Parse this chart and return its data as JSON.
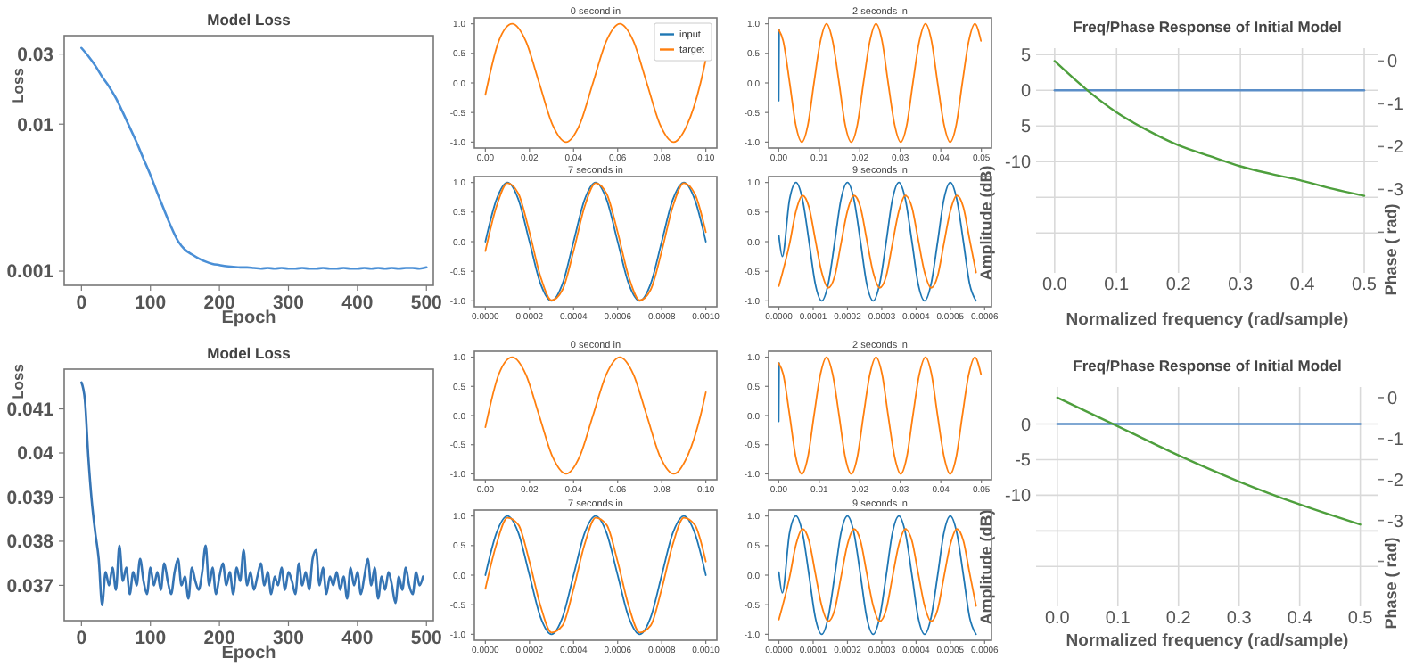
{
  "chart_data": [
    {
      "type": "line",
      "title": "Model Loss",
      "xlabel": "Epoch",
      "ylabel": "Loss",
      "log": "y",
      "xlim": [
        -25,
        510
      ],
      "ylim": [
        0.0008,
        0.04
      ],
      "xticks": [
        0,
        100,
        200,
        300,
        400,
        500
      ],
      "yticks": [
        0.001,
        0.01,
        0.03
      ],
      "series": [
        {
          "color": "#4a8fd6",
          "x": [
            0,
            10,
            20,
            30,
            40,
            50,
            60,
            70,
            80,
            90,
            100,
            110,
            120,
            130,
            140,
            150,
            160,
            170,
            180,
            190,
            200,
            210,
            220,
            230,
            240,
            250,
            260,
            270,
            280,
            290,
            300,
            310,
            320,
            330,
            340,
            350,
            360,
            370,
            380,
            390,
            400,
            410,
            420,
            430,
            440,
            450,
            460,
            470,
            480,
            490,
            500
          ],
          "values": [
            0.033,
            0.029,
            0.025,
            0.021,
            0.018,
            0.015,
            0.012,
            0.0095,
            0.0075,
            0.0058,
            0.0045,
            0.0034,
            0.0026,
            0.002,
            0.0016,
            0.0014,
            0.0013,
            0.00122,
            0.00116,
            0.00112,
            0.0011,
            0.00108,
            0.00107,
            0.00106,
            0.00106,
            0.00105,
            0.00104,
            0.00105,
            0.00104,
            0.00105,
            0.00104,
            0.00104,
            0.00105,
            0.00104,
            0.00104,
            0.00105,
            0.00104,
            0.00104,
            0.00105,
            0.00104,
            0.00104,
            0.00105,
            0.00104,
            0.00105,
            0.00104,
            0.00105,
            0.00104,
            0.00105,
            0.00105,
            0.00104,
            0.00106
          ]
        }
      ]
    },
    {
      "type": "line",
      "title": "0 second in",
      "legend": "top right",
      "xlim": [
        -0.005,
        0.105
      ],
      "ylim": [
        -1.1,
        1.1
      ],
      "xticks": [
        {
          "value": 0,
          "label": "0.00"
        },
        {
          "value": 0.02,
          "label": "0.02"
        },
        {
          "value": 0.04,
          "label": "0.04"
        },
        {
          "value": 0.06,
          "label": "0.06"
        },
        {
          "value": 0.08,
          "label": "0.08"
        },
        {
          "value": 0.1,
          "label": "0.10"
        }
      ],
      "yticks": [
        {
          "value": -1,
          "label": "-1.0"
        },
        {
          "value": -0.5,
          "label": "-0.5"
        },
        {
          "value": 0,
          "label": "0.0"
        },
        {
          "value": 0.5,
          "label": "0.5"
        },
        {
          "value": 1,
          "label": "1.0"
        }
      ],
      "series": [
        {
          "name": "input",
          "color": "#1f77b4"
        },
        {
          "name": "target",
          "color": "#ff7f0e",
          "x": [
            0,
            0.0061,
            0.0122,
            0.0183,
            0.0244,
            0.0305,
            0.0366,
            0.0427,
            0.0488,
            0.0549,
            0.061,
            0.0671,
            0.0732,
            0.0793,
            0.0854,
            0.0915,
            0.0976,
            0.1
          ],
          "values": [
            -0.2,
            0.71,
            1,
            0.71,
            0,
            -0.71,
            -1,
            -0.71,
            0,
            0.71,
            1,
            0.71,
            0,
            -0.71,
            -1,
            -0.71,
            0,
            0.4
          ]
        }
      ]
    },
    {
      "type": "line",
      "title": "2 seconds in",
      "xlim": [
        -0.0025,
        0.0525
      ],
      "ylim": [
        -1.1,
        1.1
      ],
      "xticks": [
        {
          "value": 0,
          "label": "0.00"
        },
        {
          "value": 0.01,
          "label": "0.01"
        },
        {
          "value": 0.02,
          "label": "0.02"
        },
        {
          "value": 0.03,
          "label": "0.03"
        },
        {
          "value": 0.04,
          "label": "0.04"
        },
        {
          "value": 0.05,
          "label": "0.05"
        }
      ],
      "yticks": [
        {
          "value": -1,
          "label": "-1.0"
        },
        {
          "value": -0.5,
          "label": "-0.5"
        },
        {
          "value": 0,
          "label": "0.0"
        },
        {
          "value": 0.5,
          "label": "0.5"
        },
        {
          "value": 1,
          "label": "1.0"
        }
      ],
      "series": [
        {
          "color": "#1f77b4",
          "x": [
            0,
            0.0001
          ],
          "values": [
            -0.3,
            0.9
          ]
        },
        {
          "color": "#ff7f0e",
          "x": [
            0,
            0.0011,
            0.0027,
            0.0042,
            0.0057,
            0.0072,
            0.0087,
            0.0103,
            0.0118,
            0.0133,
            0.0149,
            0.0164,
            0.0179,
            0.0194,
            0.0209,
            0.0225,
            0.024,
            0.0255,
            0.027,
            0.0286,
            0.0301,
            0.0316,
            0.0331,
            0.0347,
            0.0362,
            0.0377,
            0.0392,
            0.0408,
            0.0423,
            0.0438,
            0.0453,
            0.0469,
            0.0484,
            0.0499
          ],
          "values": [
            0.9,
            0.71,
            0,
            -0.71,
            -1,
            -0.71,
            0,
            0.71,
            1,
            0.71,
            0,
            -0.71,
            -1,
            -0.71,
            0,
            0.71,
            1,
            0.71,
            0,
            -0.71,
            -1,
            -0.71,
            0,
            0.71,
            1,
            0.71,
            0,
            -0.71,
            -1,
            -0.71,
            0,
            0.71,
            1,
            0.71
          ]
        }
      ]
    },
    {
      "type": "line",
      "title": "Freq/Phase Response of Initial Model",
      "xlabel": "Normalized frequency (rad/sample)",
      "ylabel": "Amplitude (dB)",
      "y2label": "Phase ( rad)",
      "grid": true,
      "xlim": [
        -0.03,
        0.523
      ],
      "ylim": [
        -25.6,
        5.9
      ],
      "y2lim": [
        -4.95,
        0.3
      ],
      "xticks": [
        {
          "value": 0,
          "label": "0.0"
        },
        {
          "value": 0.1,
          "label": "0.1"
        },
        {
          "value": 0.2,
          "label": "0.2"
        },
        {
          "value": 0.3,
          "label": "0.3"
        },
        {
          "value": 0.4,
          "label": "0.4"
        },
        {
          "value": 0.5,
          "label": "0.5"
        }
      ],
      "yticks": [
        5,
        0,
        {
          "value": -5,
          "label": "5"
        },
        -10,
        {
          "value": -15,
          "label": null
        },
        {
          "value": -20,
          "label": null
        }
      ],
      "y2ticks": [
        0,
        -1,
        -2,
        -3,
        {
          "value": -4,
          "label": null
        }
      ],
      "series": [
        {
          "color": "#5a8ec8",
          "x": [
            0,
            0.5
          ],
          "values": [
            0,
            0
          ]
        },
        {
          "color": "#4e9f3d",
          "axis": "y2",
          "x": [
            0,
            0.05,
            0.1,
            0.15,
            0.2,
            0.25,
            0.3,
            0.35,
            0.4,
            0.45,
            0.5
          ],
          "values": [
            0,
            -0.65,
            -1.2,
            -1.62,
            -1.97,
            -2.22,
            -2.46,
            -2.64,
            -2.8,
            -2.99,
            -3.15
          ]
        }
      ]
    },
    {
      "type": "line",
      "title": "7 seconds in",
      "xlim": [
        -5e-05,
        0.00105
      ],
      "ylim": [
        -1.1,
        1.1
      ],
      "xticks": [
        {
          "value": 0,
          "label": "0.0000"
        },
        {
          "value": 0.0002,
          "label": "0.0002"
        },
        {
          "value": 0.0004,
          "label": "0.0004"
        },
        {
          "value": 0.0006,
          "label": "0.0006"
        },
        {
          "value": 0.0008,
          "label": "0.0008"
        },
        {
          "value": 0.001,
          "label": "0.0010"
        }
      ],
      "yticks": [
        {
          "value": -1,
          "label": "-1.0"
        },
        {
          "value": -0.5,
          "label": "-0.5"
        },
        {
          "value": 0,
          "label": "0.0"
        },
        {
          "value": 0.5,
          "label": "0.5"
        },
        {
          "value": 1,
          "label": "1.0"
        }
      ],
      "series": [
        {
          "color": "#1f77b4",
          "x": [
            0,
            5e-05,
            0.0001,
            0.00015,
            0.0002,
            0.00025,
            0.0003,
            0.00035,
            0.0004,
            0.00045,
            0.0005,
            0.00055,
            0.0006,
            0.00065,
            0.0007,
            0.00075,
            0.0008,
            0.00085,
            0.0009,
            0.00095,
            0.001
          ],
          "values": [
            0,
            0.71,
            1,
            0.71,
            0,
            -0.71,
            -1,
            -0.71,
            0,
            0.71,
            1,
            0.71,
            0,
            -0.71,
            -1,
            -0.71,
            0,
            0.71,
            1,
            0.71,
            0
          ]
        },
        {
          "color": "#ff7f0e",
          "x": [
            0,
            5e-05,
            0.0001,
            0.00015,
            0.0002,
            0.00025,
            0.0003,
            0.00035,
            0.0004,
            0.00045,
            0.0005,
            0.00055,
            0.0006,
            0.00065,
            0.0007,
            0.00075,
            0.0008,
            0.00085,
            0.0009,
            0.00095,
            0.001
          ],
          "values": [
            -0.16,
            0.59,
            0.99,
            0.81,
            0.16,
            -0.59,
            -0.99,
            -0.81,
            -0.16,
            0.59,
            0.99,
            0.81,
            0.16,
            -0.59,
            -0.99,
            -0.81,
            -0.16,
            0.59,
            0.99,
            0.81,
            0.16
          ]
        }
      ]
    },
    {
      "type": "line",
      "title": "9 seconds in",
      "xlim": [
        -3e-05,
        0.00062
      ],
      "ylim": [
        -1.1,
        1.1
      ],
      "xticks": [
        {
          "value": 0,
          "label": "0.0000"
        },
        {
          "value": 0.0001,
          "label": "0.0001"
        },
        {
          "value": 0.0002,
          "label": "0.0002"
        },
        {
          "value": 0.0003,
          "label": "0.0003"
        },
        {
          "value": 0.0004,
          "label": "0.0004"
        },
        {
          "value": 0.0005,
          "label": "0.0005"
        },
        {
          "value": 0.0006,
          "label": "0.0006"
        }
      ],
      "yticks": [
        {
          "value": -1,
          "label": "-1.0"
        },
        {
          "value": -0.5,
          "label": "-0.5"
        },
        {
          "value": 0,
          "label": "0.0"
        },
        {
          "value": 0.5,
          "label": "0.5"
        },
        {
          "value": 1,
          "label": "1.0"
        }
      ],
      "series": [
        {
          "color": "#1f77b4",
          "x": [
            0,
            1e-05,
            3.1e-05,
            5e-05,
            6.9e-05,
            8.8e-05,
            0.000106,
            0.000125,
            0.000144,
            0.000163,
            0.000181,
            0.0002,
            0.000219,
            0.000238,
            0.000256,
            0.000275,
            0.000294,
            0.000313,
            0.000331,
            0.00035,
            0.000369,
            0.000388,
            0.000406,
            0.000425,
            0.000444,
            0.000463,
            0.000481,
            0.0005,
            0.000519,
            0.000538,
            0.000556,
            0.000575
          ],
          "values": [
            0.1,
            -0.25,
            0.71,
            1,
            0.71,
            0,
            -0.71,
            -1,
            -0.71,
            0,
            0.71,
            1,
            0.71,
            0,
            -0.71,
            -1,
            -0.71,
            0,
            0.71,
            1,
            0.71,
            0,
            -0.71,
            -1,
            -0.71,
            0,
            0.71,
            1,
            0.71,
            0,
            -0.71,
            -1
          ]
        },
        {
          "color": "#ff7f0e",
          "x": [
            0,
            3.1e-05,
            5e-05,
            6.9e-05,
            8.8e-05,
            0.000106,
            0.000125,
            0.000144,
            0.000163,
            0.000181,
            0.0002,
            0.000219,
            0.000238,
            0.000256,
            0.000275,
            0.000294,
            0.000313,
            0.000331,
            0.00035,
            0.000369,
            0.000388,
            0.000406,
            0.000425,
            0.000444,
            0.000463,
            0.000481,
            0.0005,
            0.000519,
            0.000538,
            0.000556,
            0.000575
          ],
          "values": [
            -0.75,
            -0.04,
            0.52,
            0.78,
            0.58,
            0.04,
            -0.52,
            -0.78,
            -0.58,
            -0.04,
            0.52,
            0.78,
            0.58,
            0.04,
            -0.52,
            -0.78,
            -0.58,
            -0.04,
            0.52,
            0.78,
            0.58,
            0.04,
            -0.52,
            -0.78,
            -0.58,
            -0.04,
            0.52,
            0.78,
            0.58,
            0.04,
            -0.52
          ]
        }
      ]
    },
    {
      "type": "line",
      "title": "Model Loss",
      "xlabel": "Epoch",
      "ylabel": "Loss",
      "xlim": [
        -25,
        510
      ],
      "ylim": [
        0.0362,
        0.0419
      ],
      "xticks": [
        0,
        100,
        200,
        300,
        400,
        500
      ],
      "yticks": [
        0.037,
        0.038,
        0.039,
        0.04,
        0.041
      ],
      "series": [
        {
          "color": "#3574b4",
          "x": [
            0,
            5,
            10,
            15,
            20,
            25,
            30,
            35,
            40,
            45,
            50,
            55,
            60,
            65,
            70,
            75,
            80,
            85,
            90,
            95,
            100,
            105,
            110,
            115,
            120,
            125,
            130,
            135,
            140,
            145,
            150,
            155,
            160,
            165,
            170,
            175,
            180,
            185,
            190,
            195,
            200,
            205,
            210,
            215,
            220,
            225,
            230,
            235,
            240,
            245,
            250,
            255,
            260,
            265,
            270,
            275,
            280,
            285,
            290,
            295,
            300,
            305,
            310,
            315,
            320,
            325,
            330,
            335,
            340,
            345,
            350,
            355,
            360,
            365,
            370,
            375,
            380,
            385,
            390,
            395,
            400,
            405,
            410,
            415,
            420,
            425,
            430,
            435,
            440,
            445,
            450,
            455,
            460,
            465,
            470,
            475,
            480,
            485,
            490,
            495
          ],
          "values": [
            0.0416,
            0.0412,
            0.0399,
            0.0389,
            0.0382,
            0.0376,
            0.03655,
            0.0373,
            0.037,
            0.0374,
            0.0369,
            0.0379,
            0.0371,
            0.0374,
            0.0368,
            0.0373,
            0.037,
            0.0376,
            0.0371,
            0.0368,
            0.0374,
            0.037,
            0.0373,
            0.0369,
            0.0375,
            0.0371,
            0.0368,
            0.0373,
            0.0376,
            0.037,
            0.0372,
            0.0367,
            0.0374,
            0.0371,
            0.0369,
            0.0373,
            0.0379,
            0.037,
            0.0374,
            0.0368,
            0.0372,
            0.0375,
            0.037,
            0.0373,
            0.0368,
            0.0374,
            0.0371,
            0.0378,
            0.037,
            0.0373,
            0.0369,
            0.0372,
            0.0375,
            0.037,
            0.0373,
            0.0368,
            0.0372,
            0.037,
            0.0374,
            0.0369,
            0.0373,
            0.0371,
            0.0368,
            0.0375,
            0.037,
            0.0373,
            0.0369,
            0.0376,
            0.0378,
            0.037,
            0.0374,
            0.0368,
            0.0372,
            0.037,
            0.0373,
            0.0369,
            0.0372,
            0.0367,
            0.0374,
            0.037,
            0.0373,
            0.0368,
            0.0372,
            0.0376,
            0.037,
            0.0374,
            0.0367,
            0.0372,
            0.0369,
            0.0373,
            0.037,
            0.0366,
            0.0372,
            0.0369,
            0.0374,
            0.037,
            0.0368,
            0.0373,
            0.037,
            0.0372
          ]
        }
      ]
    },
    {
      "type": "line",
      "title": "0 second in",
      "xlim": [
        -0.005,
        0.105
      ],
      "ylim": [
        -1.1,
        1.1
      ],
      "xticks": [
        {
          "value": 0,
          "label": "0.00"
        },
        {
          "value": 0.02,
          "label": "0.02"
        },
        {
          "value": 0.04,
          "label": "0.04"
        },
        {
          "value": 0.06,
          "label": "0.06"
        },
        {
          "value": 0.08,
          "label": "0.08"
        },
        {
          "value": 0.1,
          "label": "0.10"
        }
      ],
      "yticks": [
        {
          "value": -1,
          "label": "-1.0"
        },
        {
          "value": -0.5,
          "label": "-0.5"
        },
        {
          "value": 0,
          "label": "0.0"
        },
        {
          "value": 0.5,
          "label": "0.5"
        },
        {
          "value": 1,
          "label": "1.0"
        }
      ],
      "series": [
        {
          "color": "#ff7f0e",
          "x": [
            0,
            0.0061,
            0.0122,
            0.0183,
            0.0244,
            0.0305,
            0.0366,
            0.0427,
            0.0488,
            0.0549,
            0.061,
            0.0671,
            0.0732,
            0.0793,
            0.0854,
            0.0915,
            0.0976,
            0.1
          ],
          "values": [
            -0.2,
            0.71,
            1,
            0.71,
            0,
            -0.71,
            -1,
            -0.71,
            0,
            0.71,
            1,
            0.71,
            0,
            -0.71,
            -1,
            -0.71,
            0,
            0.4
          ]
        }
      ]
    },
    {
      "type": "line",
      "title": "2 seconds in",
      "xlim": [
        -0.0025,
        0.0525
      ],
      "ylim": [
        -1.1,
        1.1
      ],
      "xticks": [
        {
          "value": 0,
          "label": "0.00"
        },
        {
          "value": 0.01,
          "label": "0.01"
        },
        {
          "value": 0.02,
          "label": "0.02"
        },
        {
          "value": 0.03,
          "label": "0.03"
        },
        {
          "value": 0.04,
          "label": "0.04"
        },
        {
          "value": 0.05,
          "label": "0.05"
        }
      ],
      "yticks": [
        {
          "value": -1,
          "label": "-1.0"
        },
        {
          "value": -0.5,
          "label": "-0.5"
        },
        {
          "value": 0,
          "label": "0.0"
        },
        {
          "value": 0.5,
          "label": "0.5"
        },
        {
          "value": 1,
          "label": "1.0"
        }
      ],
      "series": [
        {
          "color": "#1f77b4",
          "x": [
            0,
            0.0001
          ],
          "values": [
            -0.1,
            0.9
          ]
        },
        {
          "color": "#ff7f0e",
          "x": [
            0,
            0.0011,
            0.0027,
            0.0042,
            0.0057,
            0.0072,
            0.0087,
            0.0103,
            0.0118,
            0.0133,
            0.0149,
            0.0164,
            0.0179,
            0.0194,
            0.0209,
            0.0225,
            0.024,
            0.0255,
            0.027,
            0.0286,
            0.0301,
            0.0316,
            0.0331,
            0.0347,
            0.0362,
            0.0377,
            0.0392,
            0.0408,
            0.0423,
            0.0438,
            0.0453,
            0.0469,
            0.0484,
            0.0499
          ],
          "values": [
            0.9,
            0.71,
            0,
            -0.71,
            -1,
            -0.71,
            0,
            0.71,
            1,
            0.71,
            0,
            -0.71,
            -1,
            -0.71,
            0,
            0.71,
            1,
            0.71,
            0,
            -0.71,
            -1,
            -0.71,
            0,
            0.71,
            1,
            0.71,
            0,
            -0.71,
            -1,
            -0.71,
            0,
            0.71,
            1,
            0.71
          ]
        }
      ]
    },
    {
      "type": "line",
      "title": "Freq/Phase Response of Initial Model",
      "xlabel": "Normalized frequency (rad/sample)",
      "ylabel": "Amplitude (dB)",
      "y2label": "Phase ( rad)",
      "grid": true,
      "xlim": [
        -0.035,
        0.53
      ],
      "ylim": [
        -25.6,
        5.2
      ],
      "y2lim": [
        -5.1,
        0.26
      ],
      "xticks": [
        {
          "value": 0,
          "label": "0.0"
        },
        {
          "value": 0.1,
          "label": "0.1"
        },
        {
          "value": 0.2,
          "label": "0.2"
        },
        {
          "value": 0.3,
          "label": "0.3"
        },
        {
          "value": 0.4,
          "label": "0.4"
        },
        {
          "value": 0.5,
          "label": "0.5"
        }
      ],
      "yticks": [
        0,
        -5,
        -10,
        {
          "value": -15,
          "label": null
        },
        {
          "value": -20,
          "label": null
        }
      ],
      "y2ticks": [
        0,
        -1,
        -2,
        -3,
        {
          "value": -4,
          "label": null
        }
      ],
      "series": [
        {
          "color": "#5a8ec8",
          "x": [
            0,
            0.5
          ],
          "values": [
            0,
            0
          ]
        },
        {
          "color": "#4e9f3d",
          "axis": "y2",
          "x": [
            0,
            0.1,
            0.2,
            0.3,
            0.4,
            0.5
          ],
          "values": [
            0,
            -0.7,
            -1.41,
            -2.05,
            -2.61,
            -3.1
          ]
        }
      ]
    },
    {
      "type": "line",
      "title": "7 seconds in",
      "xlim": [
        -5e-05,
        0.00105
      ],
      "ylim": [
        -1.1,
        1.1
      ],
      "xticks": [
        {
          "value": 0,
          "label": "0.0000"
        },
        {
          "value": 0.0002,
          "label": "0.0002"
        },
        {
          "value": 0.0004,
          "label": "0.0004"
        },
        {
          "value": 0.0006,
          "label": "0.0006"
        },
        {
          "value": 0.0008,
          "label": "0.0008"
        },
        {
          "value": 0.001,
          "label": "0.0010"
        }
      ],
      "yticks": [
        {
          "value": -1,
          "label": "-1.0"
        },
        {
          "value": -0.5,
          "label": "-0.5"
        },
        {
          "value": 0,
          "label": "0.0"
        },
        {
          "value": 0.5,
          "label": "0.5"
        },
        {
          "value": 1,
          "label": "1.0"
        }
      ],
      "series": [
        {
          "color": "#1f77b4",
          "x": [
            0,
            5e-05,
            0.0001,
            0.00015,
            0.0002,
            0.00025,
            0.0003,
            0.00035,
            0.0004,
            0.00045,
            0.0005,
            0.00055,
            0.0006,
            0.00065,
            0.0007,
            0.00075,
            0.0008,
            0.00085,
            0.0009,
            0.00095,
            0.001
          ],
          "values": [
            0,
            0.71,
            1,
            0.71,
            0,
            -0.71,
            -1,
            -0.71,
            0,
            0.71,
            1,
            0.71,
            0,
            -0.71,
            -1,
            -0.71,
            0,
            0.71,
            1,
            0.71,
            0
          ]
        },
        {
          "color": "#ff7f0e",
          "x": [
            0,
            5e-05,
            0.0001,
            0.00015,
            0.0002,
            0.00025,
            0.0003,
            0.00035,
            0.0004,
            0.00045,
            0.0005,
            0.00055,
            0.0006,
            0.00065,
            0.0007,
            0.00075,
            0.0008,
            0.00085,
            0.0009,
            0.00095,
            0.001
          ],
          "values": [
            -0.23,
            0.52,
            0.97,
            0.85,
            0.23,
            -0.52,
            -0.97,
            -0.85,
            -0.23,
            0.52,
            0.97,
            0.85,
            0.23,
            -0.52,
            -0.97,
            -0.85,
            -0.23,
            0.52,
            0.97,
            0.85,
            0.23
          ]
        }
      ]
    },
    {
      "type": "line",
      "title": "9 seconds in",
      "xlim": [
        -3e-05,
        0.00062
      ],
      "ylim": [
        -1.1,
        1.1
      ],
      "xticks": [
        {
          "value": 0,
          "label": "0.0000"
        },
        {
          "value": 0.0001,
          "label": "0.0001"
        },
        {
          "value": 0.0002,
          "label": "0.0002"
        },
        {
          "value": 0.0003,
          "label": "0.0003"
        },
        {
          "value": 0.0004,
          "label": "0.0004"
        },
        {
          "value": 0.0005,
          "label": "0.0005"
        },
        {
          "value": 0.0006,
          "label": "0.0006"
        }
      ],
      "yticks": [
        {
          "value": -1,
          "label": "-1.0"
        },
        {
          "value": -0.5,
          "label": "-0.5"
        },
        {
          "value": 0,
          "label": "0.0"
        },
        {
          "value": 0.5,
          "label": "0.5"
        },
        {
          "value": 1,
          "label": "1.0"
        }
      ],
      "series": [
        {
          "color": "#1f77b4",
          "x": [
            0,
            1e-05,
            3.1e-05,
            5e-05,
            6.9e-05,
            8.8e-05,
            0.000106,
            0.000125,
            0.000144,
            0.000163,
            0.000181,
            0.0002,
            0.000219,
            0.000238,
            0.000256,
            0.000275,
            0.000294,
            0.000313,
            0.000331,
            0.00035,
            0.000369,
            0.000388,
            0.000406,
            0.000425,
            0.000444,
            0.000463,
            0.000481,
            0.0005,
            0.000519,
            0.000538,
            0.000556,
            0.000575
          ],
          "values": [
            0.05,
            -0.3,
            0.71,
            1,
            0.71,
            0,
            -0.71,
            -1,
            -0.71,
            0,
            0.71,
            1,
            0.71,
            0,
            -0.71,
            -1,
            -0.71,
            0,
            0.71,
            1,
            0.71,
            0,
            -0.71,
            -1,
            -0.71,
            0,
            0.71,
            1,
            0.71,
            0,
            -0.71,
            -1
          ]
        },
        {
          "color": "#ff7f0e",
          "x": [
            0,
            3.1e-05,
            5e-05,
            6.9e-05,
            8.8e-05,
            0.000106,
            0.000125,
            0.000144,
            0.000163,
            0.000181,
            0.0002,
            0.000219,
            0.000238,
            0.000256,
            0.000275,
            0.000294,
            0.000313,
            0.000331,
            0.00035,
            0.000369,
            0.000388,
            0.000406,
            0.000425,
            0.000444,
            0.000463,
            0.000481,
            0.0005,
            0.000519,
            0.000538,
            0.000556,
            0.000575
          ],
          "values": [
            -0.75,
            -0.04,
            0.52,
            0.78,
            0.58,
            0.04,
            -0.52,
            -0.78,
            -0.58,
            -0.04,
            0.52,
            0.78,
            0.58,
            0.04,
            -0.52,
            -0.78,
            -0.58,
            -0.04,
            0.52,
            0.78,
            0.58,
            0.04,
            -0.52,
            -0.78,
            -0.58,
            -0.04,
            0.52,
            0.78,
            0.58,
            0.04,
            -0.52
          ]
        }
      ]
    }
  ]
}
